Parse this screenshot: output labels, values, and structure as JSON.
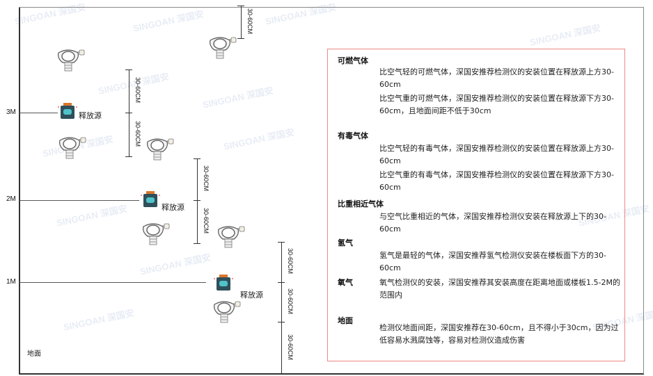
{
  "levels": [
    "3M",
    "2M",
    "1M"
  ],
  "ground_label": "地面",
  "dimension_label": "30-60CM",
  "source_label": "释放源",
  "watermark": "SINGOAN 深国安",
  "colors": {
    "frame": "#333333",
    "panel_border": "#ee8888",
    "source_body": "#2f4f5a",
    "source_top": "#d9772b",
    "source_screen": "#4fc3c8"
  },
  "panel": {
    "sections": [
      {
        "title": "可燃气体",
        "paragraphs": [
          "比空气轻的可燃气体，深国安推荐检测仪的安装位置在释放源上方30-60cm",
          "比空气重的可燃气体，深国安推荐检测仪的安装位置在释放源下方30-60cm，且地面间距不低于30cm"
        ]
      },
      {
        "title": "有毒气体",
        "paragraphs": [
          "比空气轻的有毒气体，深国安推荐检测仪的安装位置在释放源上方30-60cm",
          "比空气重的有毒气体，深国安推荐检测仪的安装位置在释放源下方30-60cm"
        ]
      },
      {
        "title": "比重相近气体",
        "paragraphs": [
          "与空气比重相近的气体，深国安推荐检测仪安装在释放源上下的30-60cm"
        ]
      },
      {
        "title": "氢气",
        "paragraphs": [
          "氢气是最轻的气体，深国安推荐氢气检测仪安装在楼板面下方的30-60cm"
        ]
      },
      {
        "title": "氧气",
        "paragraphs": [
          "氧气检测仪的安装，深国安推荐其安装高度在距离地面或楼板1.5-2M的范围内"
        ]
      },
      {
        "title": "地面",
        "paragraphs": [
          "检测仪地面间距，深国安推荐在30-60cm，且不得小于30cm，因为过低容易水溅腐蚀等，容易对检测仪造成伤害"
        ]
      }
    ]
  }
}
